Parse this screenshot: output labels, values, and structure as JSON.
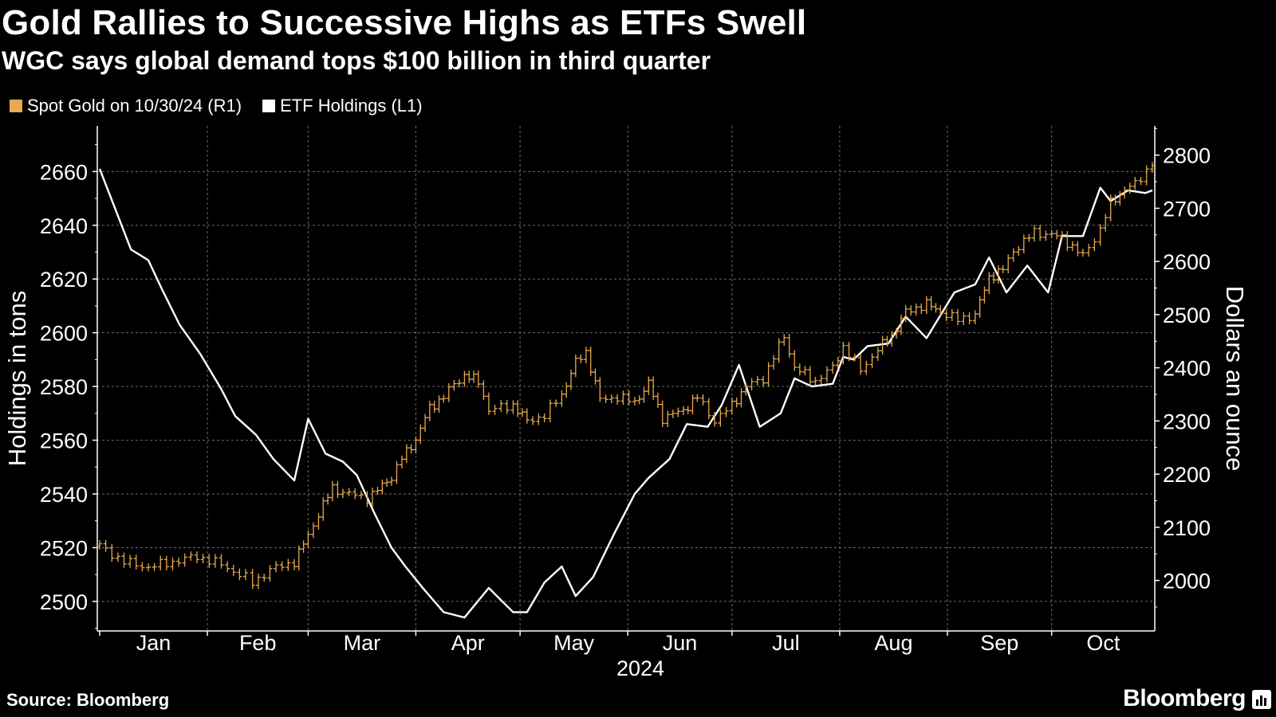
{
  "chart_data": {
    "type": "line",
    "title": "Gold Rallies to Successive Highs as ETFs Swell",
    "subtitle": "WGC says global demand tops $100 billion in third quarter",
    "source": "Source: Bloomberg",
    "brand": "Bloomberg",
    "colors": {
      "gold": "#e8a94f",
      "etf": "#ffffff",
      "grid": "#6b6b6b",
      "background": "#000000"
    },
    "legend_position": "top-left",
    "grid": true,
    "x_axis": {
      "ticks": [
        "Jan",
        "Feb",
        "Mar",
        "Apr",
        "May",
        "Jun",
        "Jul",
        "Aug",
        "Sep",
        "Oct"
      ],
      "year_label": "2024",
      "range": [
        "2024-01-01",
        "2024-10-30"
      ]
    },
    "y_left": {
      "label": "Holdings in tons",
      "ticks": [
        2500,
        2520,
        2540,
        2560,
        2580,
        2600,
        2620,
        2640,
        2660
      ],
      "range": [
        2489,
        2677
      ]
    },
    "y_right": {
      "label": "Dollars an ounce",
      "ticks": [
        2000,
        2100,
        2200,
        2300,
        2400,
        2500,
        2600,
        2700,
        2800
      ],
      "range": [
        1905,
        2855
      ]
    },
    "series": [
      {
        "name": "Spot Gold on 10/30/24 (R1)",
        "axis": "right",
        "color": "#e8a94f",
        "style": "ohlc-bars",
        "x": [
          "2024-01-01",
          "2024-01-08",
          "2024-01-15",
          "2024-01-22",
          "2024-01-29",
          "2024-02-05",
          "2024-02-12",
          "2024-02-14",
          "2024-02-19",
          "2024-02-26",
          "2024-03-01",
          "2024-03-04",
          "2024-03-08",
          "2024-03-11",
          "2024-03-18",
          "2024-03-21",
          "2024-03-25",
          "2024-03-28",
          "2024-04-01",
          "2024-04-05",
          "2024-04-09",
          "2024-04-12",
          "2024-04-15",
          "2024-04-19",
          "2024-04-22",
          "2024-04-29",
          "2024-05-03",
          "2024-05-08",
          "2024-05-13",
          "2024-05-17",
          "2024-05-20",
          "2024-05-24",
          "2024-05-29",
          "2024-06-03",
          "2024-06-07",
          "2024-06-11",
          "2024-06-17",
          "2024-06-21",
          "2024-06-26",
          "2024-07-01",
          "2024-07-05",
          "2024-07-10",
          "2024-07-16",
          "2024-07-19",
          "2024-07-25",
          "2024-07-30",
          "2024-08-02",
          "2024-08-07",
          "2024-08-12",
          "2024-08-16",
          "2024-08-20",
          "2024-08-26",
          "2024-08-30",
          "2024-09-04",
          "2024-09-09",
          "2024-09-13",
          "2024-09-17",
          "2024-09-20",
          "2024-09-26",
          "2024-10-01",
          "2024-10-04",
          "2024-10-10",
          "2024-10-15",
          "2024-10-18",
          "2024-10-22",
          "2024-10-25",
          "2024-10-30"
        ],
        "y": [
          2065,
          2035,
          2025,
          2035,
          2045,
          2030,
          2005,
          1995,
          2020,
          2035,
          2085,
          2125,
          2175,
          2165,
          2155,
          2170,
          2195,
          2230,
          2265,
          2325,
          2345,
          2370,
          2385,
          2375,
          2320,
          2330,
          2300,
          2310,
          2350,
          2410,
          2430,
          2340,
          2345,
          2335,
          2370,
          2305,
          2320,
          2345,
          2300,
          2330,
          2365,
          2380,
          2460,
          2400,
          2375,
          2400,
          2440,
          2395,
          2435,
          2460,
          2505,
          2520,
          2505,
          2490,
          2500,
          2570,
          2585,
          2620,
          2655,
          2650,
          2645,
          2610,
          2660,
          2710,
          2735,
          2745,
          2785
        ]
      },
      {
        "name": "ETF Holdings (L1)",
        "axis": "left",
        "color": "#ffffff",
        "style": "line",
        "x": [
          "2024-01-01",
          "2024-01-04",
          "2024-01-10",
          "2024-01-15",
          "2024-01-19",
          "2024-01-24",
          "2024-01-30",
          "2024-02-05",
          "2024-02-09",
          "2024-02-15",
          "2024-02-20",
          "2024-02-26",
          "2024-03-01",
          "2024-03-06",
          "2024-03-11",
          "2024-03-15",
          "2024-03-20",
          "2024-03-25",
          "2024-03-29",
          "2024-04-03",
          "2024-04-09",
          "2024-04-15",
          "2024-04-22",
          "2024-04-29",
          "2024-05-03",
          "2024-05-08",
          "2024-05-13",
          "2024-05-17",
          "2024-05-22",
          "2024-05-28",
          "2024-06-03",
          "2024-06-07",
          "2024-06-13",
          "2024-06-18",
          "2024-06-24",
          "2024-06-28",
          "2024-07-03",
          "2024-07-09",
          "2024-07-15",
          "2024-07-19",
          "2024-07-24",
          "2024-07-30",
          "2024-08-02",
          "2024-08-05",
          "2024-08-09",
          "2024-08-15",
          "2024-08-20",
          "2024-08-26",
          "2024-09-03",
          "2024-09-09",
          "2024-09-13",
          "2024-09-18",
          "2024-09-24",
          "2024-09-30",
          "2024-10-04",
          "2024-10-10",
          "2024-10-15",
          "2024-10-18",
          "2024-10-23",
          "2024-10-28",
          "2024-10-30"
        ],
        "y": [
          2661,
          2651,
          2631,
          2627,
          2616,
          2603,
          2592,
          2579,
          2569,
          2562,
          2553,
          2545,
          2568,
          2555,
          2552,
          2547,
          2533,
          2520,
          2513,
          2505,
          2496,
          2494,
          2505,
          2496,
          2496,
          2507,
          2513,
          2502,
          2509,
          2525,
          2540,
          2546,
          2553,
          2566,
          2565,
          2573,
          2588,
          2565,
          2570,
          2583,
          2580,
          2581,
          2591,
          2590,
          2595,
          2596,
          2606,
          2598,
          2615,
          2618,
          2628,
          2615,
          2625,
          2615,
          2636,
          2636,
          2654,
          2649,
          2653,
          2652,
          2653
        ]
      }
    ]
  }
}
